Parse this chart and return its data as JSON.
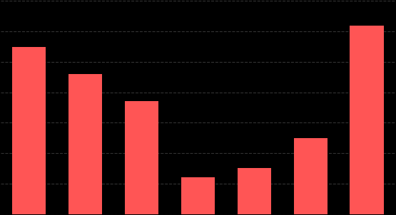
{
  "bar_values": [
    55,
    46,
    37,
    12,
    15,
    25,
    62
  ],
  "bar_color": "#FF5555",
  "background_color": "#000000",
  "grid_color": "#333333",
  "grid_linestyle": "--",
  "ylim": [
    0,
    70
  ],
  "figsize": [
    5.55,
    3.02
  ],
  "dpi": 100,
  "bar_width": 0.6,
  "yticks": [
    0,
    10,
    20,
    30,
    40,
    50,
    60,
    70
  ]
}
